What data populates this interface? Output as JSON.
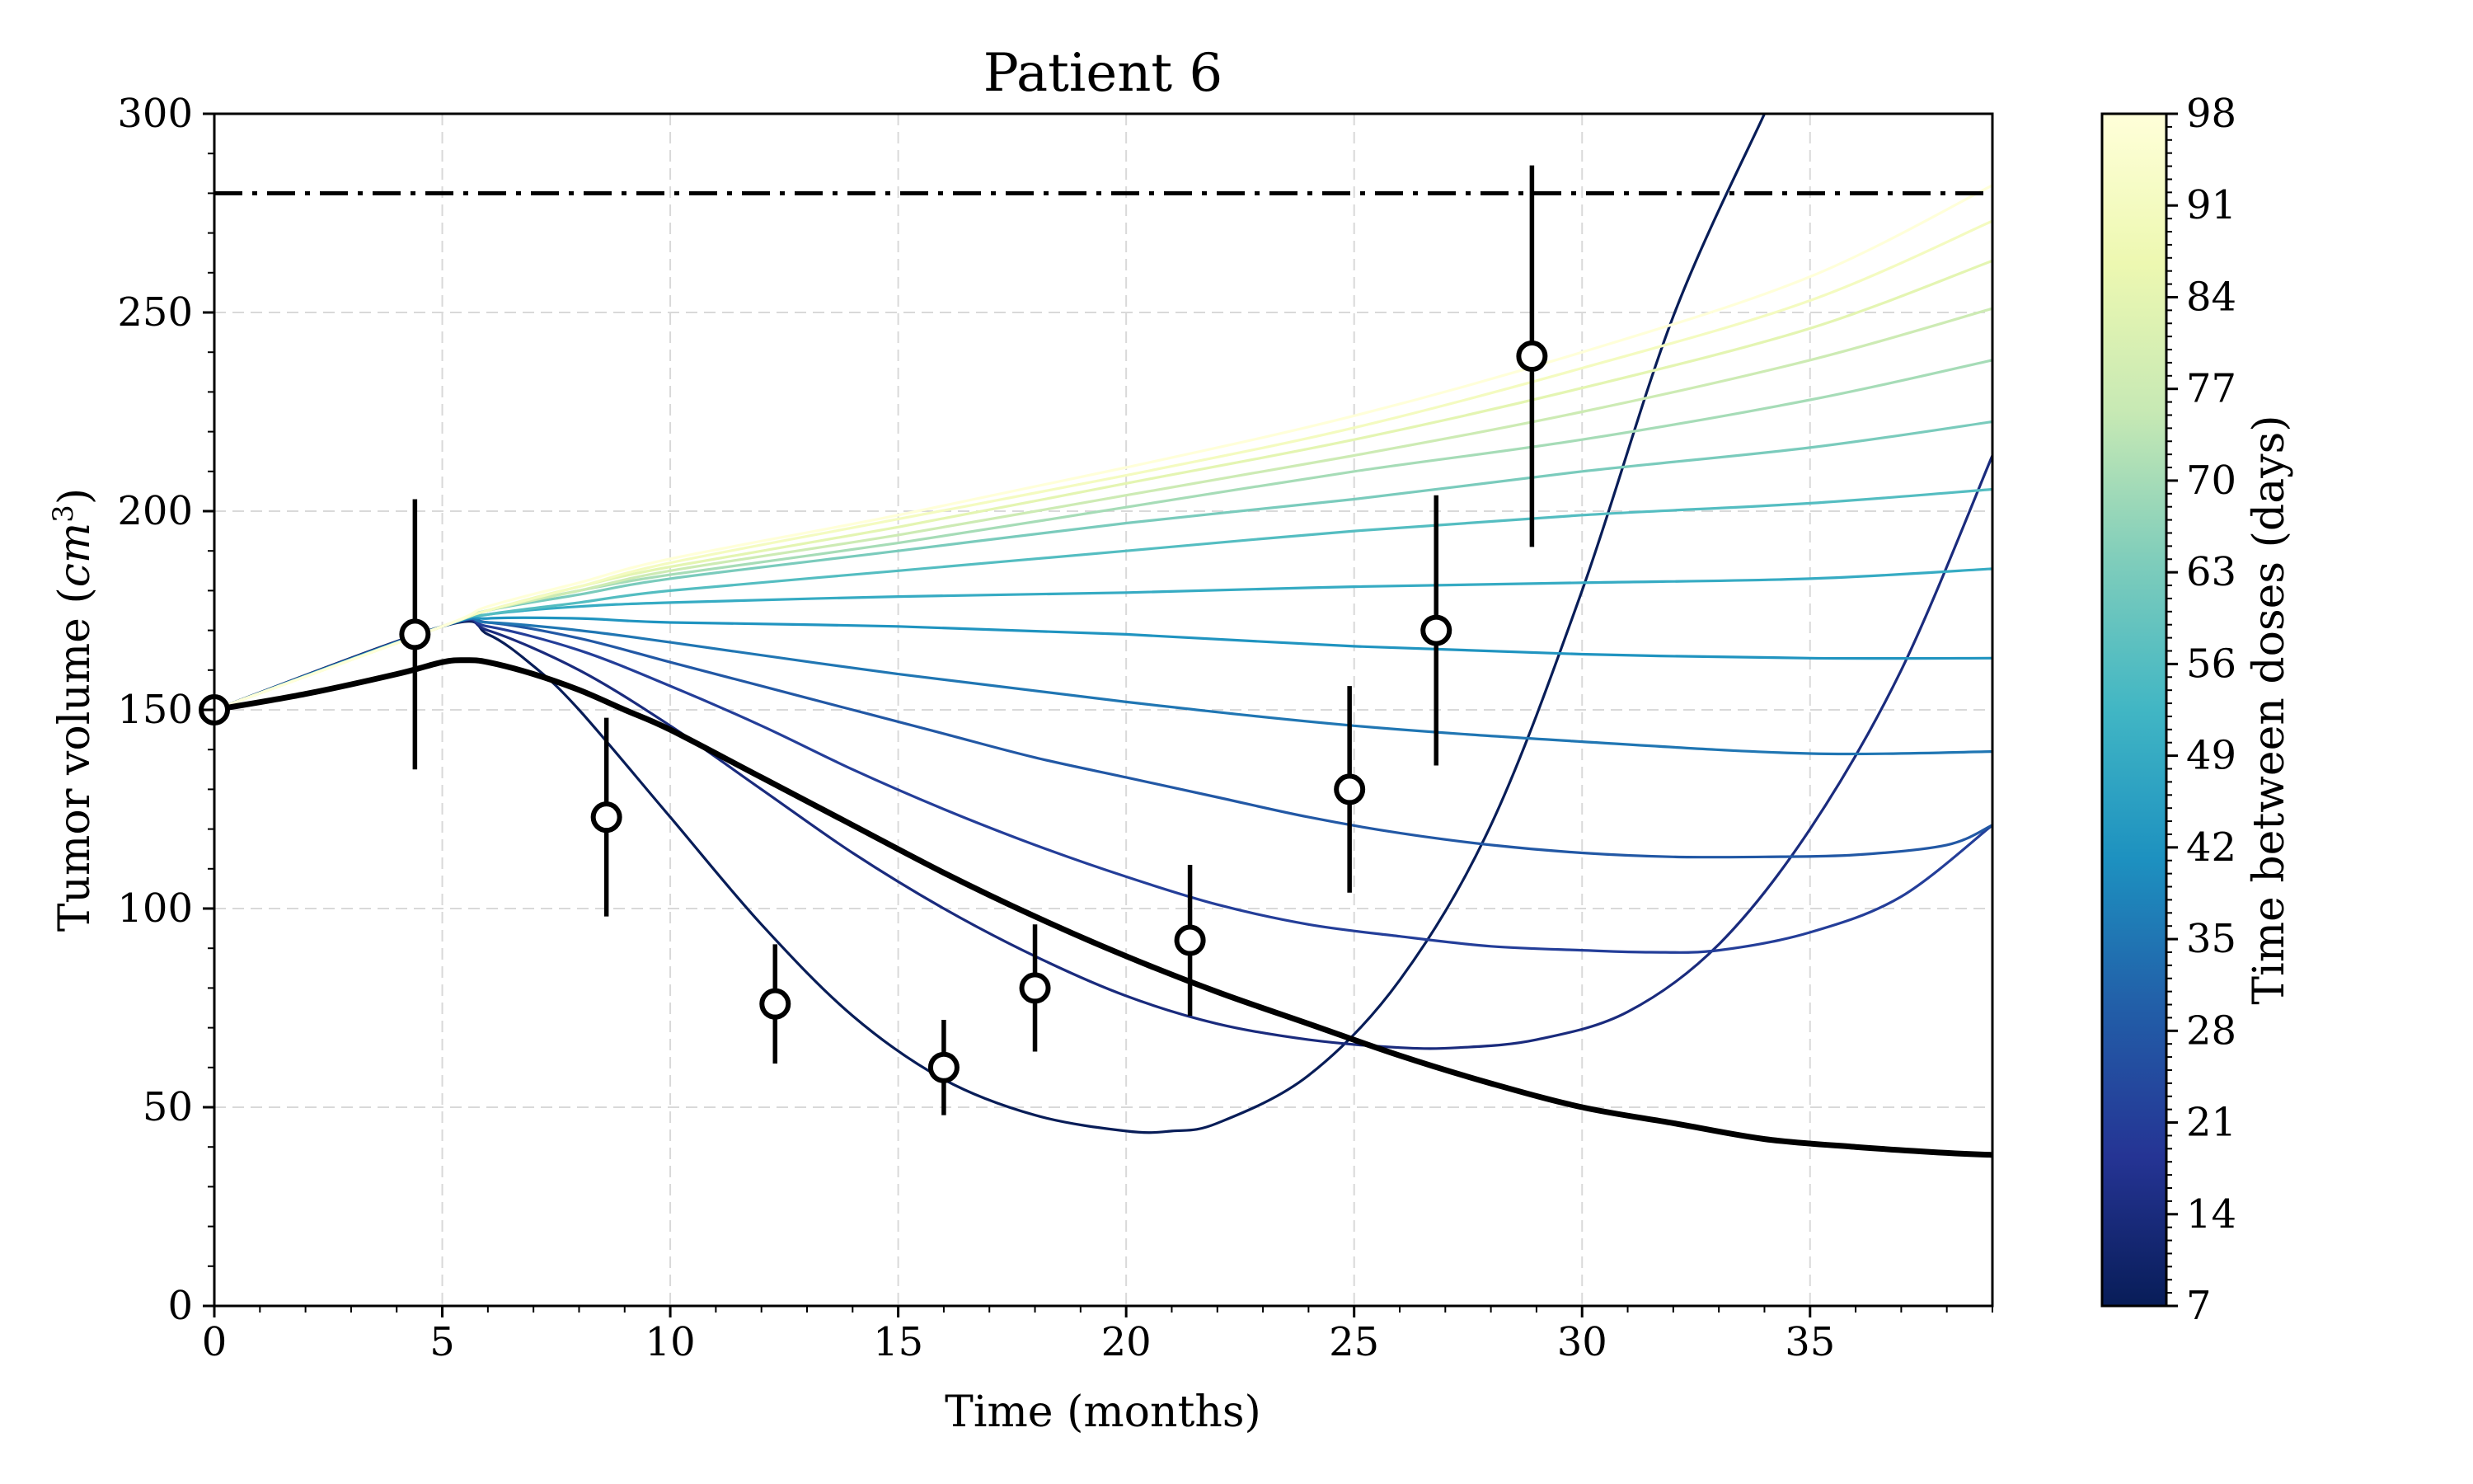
{
  "chart_data": {
    "type": "line",
    "title": "Patient 6",
    "xlabel": "Time (months)",
    "ylabel": "Tumor volume",
    "ylabel_unit": "cm",
    "ylabel_unit_exp": "3",
    "xlim": [
      0,
      39
    ],
    "ylim": [
      0,
      300
    ],
    "x_ticks": [
      "0",
      "5",
      "10",
      "15",
      "20",
      "25",
      "30",
      "35"
    ],
    "y_ticks": [
      "0",
      "50",
      "100",
      "150",
      "200",
      "250",
      "300"
    ],
    "grid": true,
    "threshold": {
      "y": 280,
      "style": "dash-dot",
      "color": "#000000"
    },
    "colorbar": {
      "label": "Time between doses (days)",
      "min": 7,
      "max": 98,
      "ticks": [
        "7",
        "14",
        "21",
        "28",
        "35",
        "42",
        "49",
        "56",
        "63",
        "70",
        "77",
        "84",
        "91",
        "98"
      ],
      "colormap": "YlGnBu_r",
      "stops": [
        "#081d58",
        "#253494",
        "#225ea8",
        "#1d91c0",
        "#41b6c4",
        "#7fcdbb",
        "#c7e9b4",
        "#edf8b1",
        "#ffffd9"
      ]
    },
    "observations": [
      {
        "x": 0.0,
        "y": 150,
        "err": 0
      },
      {
        "x": 4.4,
        "y": 169,
        "err": 34
      },
      {
        "x": 8.6,
        "y": 123,
        "err": 25
      },
      {
        "x": 12.3,
        "y": 76,
        "err": 15
      },
      {
        "x": 16.0,
        "y": 60,
        "err": 12
      },
      {
        "x": 18.0,
        "y": 80,
        "err": 16
      },
      {
        "x": 21.4,
        "y": 92,
        "err": 19
      },
      {
        "x": 24.9,
        "y": 130,
        "err": 26
      },
      {
        "x": 26.8,
        "y": 170,
        "err": 34
      },
      {
        "x": 28.9,
        "y": 239,
        "err": 48
      }
    ],
    "fit": {
      "color": "#000000",
      "x": [
        0,
        2,
        4,
        5,
        5.5,
        6,
        7,
        8,
        9,
        10,
        12,
        14,
        16,
        18,
        20,
        22,
        24,
        26,
        28,
        30,
        32,
        34,
        36,
        38,
        39
      ],
      "y": [
        150,
        154,
        159,
        162,
        162.5,
        162,
        159,
        155,
        150,
        145,
        133,
        121,
        109,
        98,
        88,
        79,
        71,
        63,
        56,
        50,
        46,
        42,
        40,
        38.5,
        38
      ]
    },
    "series": [
      {
        "days": 7,
        "x": [
          0,
          5,
          6,
          7,
          8,
          10,
          12,
          14,
          16,
          18,
          20,
          21,
          22,
          24,
          26,
          28,
          30,
          32,
          34
        ],
        "y": [
          150,
          171,
          169,
          161,
          150,
          123,
          96,
          73,
          57,
          48,
          44,
          44,
          46,
          58,
          82,
          121,
          180,
          249,
          300
        ]
      },
      {
        "days": 14,
        "x": [
          0,
          5,
          6,
          8,
          10,
          12,
          14,
          16,
          18,
          20,
          22,
          24,
          26,
          27.3,
          29,
          31,
          33,
          35,
          37,
          39
        ],
        "y": [
          150,
          171,
          170,
          160,
          146,
          130,
          114,
          100,
          88,
          78,
          71,
          67,
          65,
          65,
          67,
          74,
          91,
          120,
          160,
          214
        ]
      },
      {
        "days": 21,
        "x": [
          0,
          5,
          6,
          8,
          10,
          12,
          14,
          16,
          18,
          20,
          22,
          24,
          26,
          28,
          30,
          31.5,
          33,
          35,
          37,
          39
        ],
        "y": [
          150,
          171,
          171,
          165,
          156,
          146,
          135,
          125,
          116,
          108,
          101,
          96,
          93,
          90.5,
          89.5,
          89,
          89.5,
          94,
          103,
          121
        ]
      },
      {
        "days": 28,
        "x": [
          0,
          5,
          6,
          8,
          10,
          12,
          14,
          16,
          18,
          20,
          22,
          24,
          26,
          28,
          30,
          32,
          34,
          36,
          38,
          39
        ],
        "y": [
          150,
          171,
          172,
          168,
          162,
          156,
          150,
          144,
          138,
          133,
          128,
          123,
          119,
          116,
          114,
          113,
          113,
          113.5,
          116,
          121
        ]
      },
      {
        "days": 35,
        "x": [
          0,
          5,
          6,
          8,
          10,
          15,
          20,
          25,
          30,
          35,
          39
        ],
        "y": [
          150,
          171,
          172,
          170,
          167,
          159,
          152,
          146,
          142,
          139,
          139.5
        ]
      },
      {
        "days": 42,
        "x": [
          0,
          5,
          6,
          8,
          10,
          15,
          20,
          25,
          30,
          35,
          39
        ],
        "y": [
          150,
          171,
          173,
          173,
          172,
          171,
          169,
          166,
          164,
          163,
          163
        ]
      },
      {
        "days": 49,
        "x": [
          0,
          5,
          6,
          8,
          10,
          15,
          20,
          25,
          30,
          35,
          39
        ],
        "y": [
          150,
          171,
          174,
          176,
          177,
          178.5,
          179.5,
          181,
          182,
          183,
          185.5
        ]
      },
      {
        "days": 56,
        "x": [
          0,
          5,
          6,
          8,
          10,
          15,
          20,
          25,
          30,
          35,
          39
        ],
        "y": [
          150,
          171,
          174,
          177,
          180,
          185,
          190,
          195,
          199,
          202,
          205.5
        ]
      },
      {
        "days": 63,
        "x": [
          0,
          5,
          6,
          8,
          10,
          15,
          20,
          25,
          30,
          35,
          39
        ],
        "y": [
          150,
          171,
          175,
          179,
          183,
          190,
          197,
          203,
          210,
          216,
          222.5
        ]
      },
      {
        "days": 70,
        "x": [
          0,
          5,
          6,
          8,
          10,
          15,
          20,
          25,
          30,
          35,
          39
        ],
        "y": [
          150,
          171,
          175,
          180,
          184,
          192,
          201,
          210,
          218,
          228,
          238
        ]
      },
      {
        "days": 77,
        "x": [
          0,
          5,
          6,
          8,
          10,
          15,
          20,
          25,
          30,
          35,
          39
        ],
        "y": [
          150,
          171,
          175,
          180,
          185,
          194,
          204,
          214,
          225,
          238,
          251
        ]
      },
      {
        "days": 84,
        "x": [
          0,
          5,
          6,
          8,
          10,
          15,
          20,
          25,
          30,
          35,
          39
        ],
        "y": [
          150,
          171,
          175,
          181,
          186,
          196,
          207,
          218,
          231,
          246,
          263
        ]
      },
      {
        "days": 91,
        "x": [
          0,
          5,
          6,
          8,
          10,
          15,
          20,
          25,
          30,
          35,
          39
        ],
        "y": [
          150,
          171,
          175,
          181,
          187,
          198,
          209,
          221,
          236,
          253,
          273
        ]
      },
      {
        "days": 98,
        "x": [
          0,
          5,
          6,
          8,
          10,
          15,
          20,
          25,
          30,
          35,
          39
        ],
        "y": [
          150,
          171,
          176,
          182,
          188,
          199,
          211,
          224,
          240,
          259,
          282
        ]
      }
    ]
  }
}
